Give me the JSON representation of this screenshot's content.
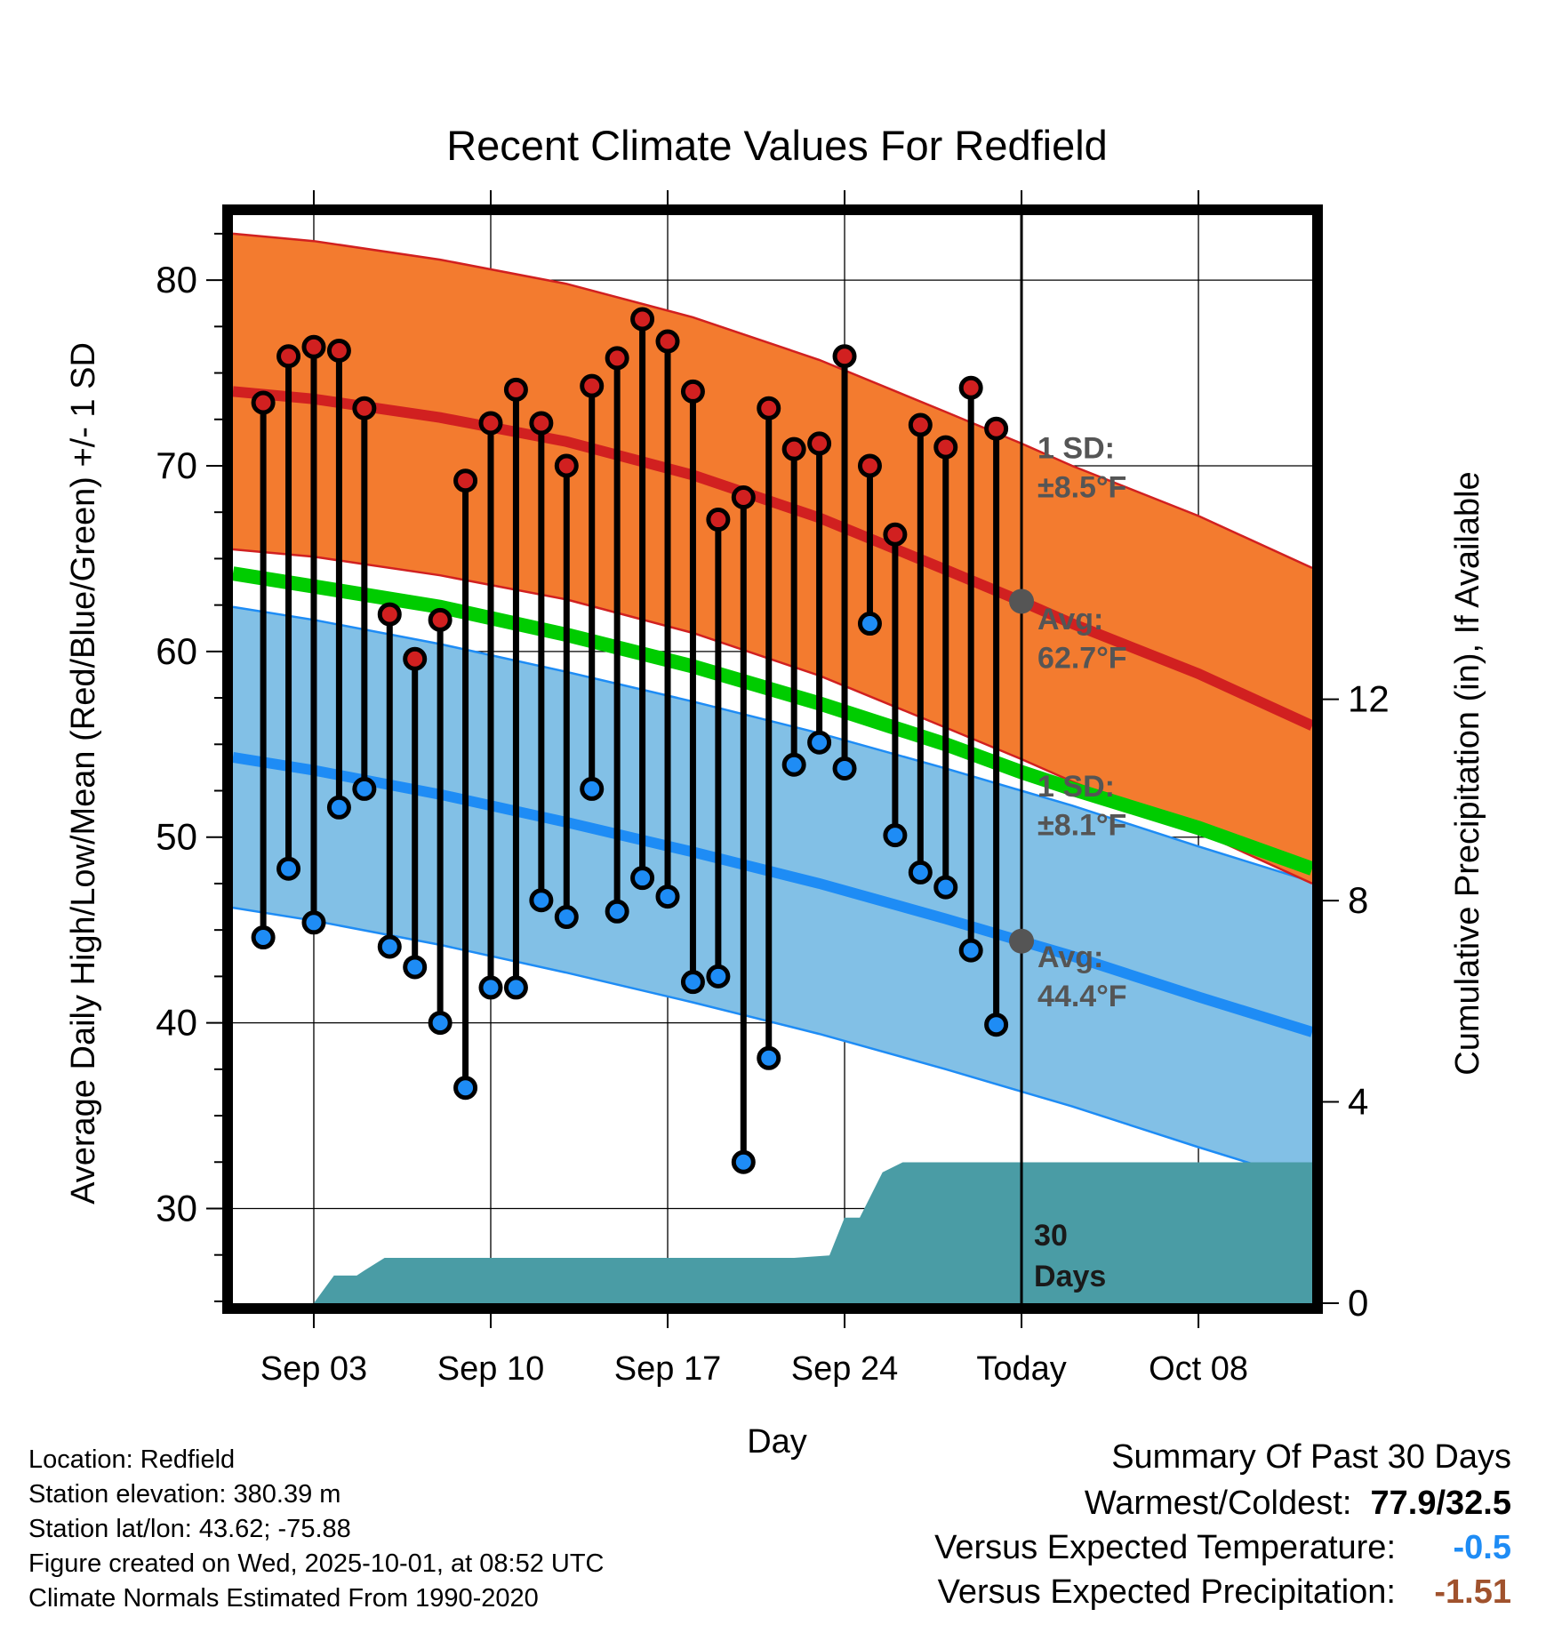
{
  "chart_data": {
    "type": "line",
    "title": "Recent Climate Values For Redfield",
    "xlabel": "Day",
    "ylabel": "Average Daily High/Low/Mean (Red/Blue/Green) +/- 1 SD",
    "y2label": "Cumulative Precipitation (in), If Available",
    "xlim": [
      -3.2,
      39.5
    ],
    "ylim": [
      24.9,
      83.5
    ],
    "y2lim": [
      0,
      21.62
    ],
    "x_ticks": [
      {
        "day": 0,
        "label": "Sep 03"
      },
      {
        "day": 7,
        "label": "Sep 10"
      },
      {
        "day": 14,
        "label": "Sep 17"
      },
      {
        "day": 21,
        "label": "Sep 24"
      },
      {
        "day": 28,
        "label": "Today"
      },
      {
        "day": 35,
        "label": "Oct 08"
      }
    ],
    "y_ticks": [
      30,
      40,
      50,
      60,
      70,
      80
    ],
    "y2_ticks": [
      0,
      4,
      8,
      12
    ],
    "today_day": 28,
    "highs": [
      73.4,
      75.9,
      76.4,
      76.2,
      73.1,
      62.0,
      59.6,
      61.7,
      69.2,
      72.3,
      74.1,
      72.3,
      70.0,
      74.3,
      75.8,
      77.9,
      76.7,
      74.0,
      67.1,
      68.3,
      73.1,
      70.9,
      71.2,
      75.9,
      70.0,
      66.3,
      72.2,
      71.0,
      74.2,
      72.0
    ],
    "lows": [
      44.6,
      48.3,
      45.4,
      51.6,
      52.6,
      44.1,
      43.0,
      40.0,
      36.5,
      41.9,
      41.9,
      46.6,
      45.7,
      52.6,
      46.0,
      47.8,
      46.8,
      42.2,
      42.5,
      32.5,
      38.1,
      53.9,
      55.1,
      53.7,
      61.5,
      50.1,
      48.1,
      47.3,
      43.9,
      39.9
    ],
    "normal_high": {
      "x": [
        -3.2,
        0,
        5,
        10,
        15,
        20,
        25,
        28,
        30,
        35,
        39.5
      ],
      "y": [
        74.0,
        73.6,
        72.6,
        71.3,
        69.5,
        67.2,
        64.4,
        62.7,
        61.5,
        58.8,
        56.0
      ]
    },
    "normal_low": {
      "x": [
        -3.2,
        0,
        5,
        10,
        15,
        20,
        25,
        28,
        30,
        35,
        39.5
      ],
      "y": [
        54.3,
        53.6,
        52.3,
        50.8,
        49.2,
        47.5,
        45.6,
        44.4,
        43.6,
        41.4,
        39.5
      ]
    },
    "normal_mean": {
      "x": [
        -3.2,
        0,
        5,
        10,
        15,
        20,
        25,
        28,
        30,
        35,
        39.5
      ],
      "y": [
        64.2,
        63.5,
        62.4,
        60.9,
        59.2,
        57.2,
        55.0,
        53.5,
        52.6,
        50.5,
        48.3
      ]
    },
    "high_sd": 8.5,
    "low_sd": 8.1,
    "precip": {
      "x": [
        -3.2,
        0,
        0.8,
        1.7,
        2.0,
        2.8,
        11,
        14,
        19,
        20.4,
        21,
        21.6,
        22.5,
        23.3,
        24,
        39.5
      ],
      "y": [
        0,
        0,
        0.55,
        0.55,
        0.65,
        0.9,
        0.9,
        0.9,
        0.9,
        0.95,
        1.7,
        1.7,
        2.6,
        2.8,
        2.8,
        2.8
      ]
    },
    "annotations": {
      "high_sd_label": "1 SD:",
      "high_sd_value": "±8.5°F",
      "high_avg_label": "Avg:",
      "high_avg_value": "62.7°F",
      "low_sd_label": "1 SD:",
      "low_sd_value": "±8.1°F",
      "low_avg_label": "Avg:",
      "low_avg_value": "44.4°F",
      "days_line1": "30",
      "days_line2": "Days"
    },
    "colors": {
      "high_band": "#f37b2f",
      "high_line": "#d12020",
      "low_band": "#82c0e6",
      "low_line": "#1e8cf5",
      "mean_line": "#00cc00",
      "precip": "#4a9ca5",
      "annotation": "#555555"
    }
  },
  "info": {
    "location": "Location: Redfield",
    "elevation": "Station elevation: 380.39 m",
    "latlon": "Station lat/lon: 43.62; -75.88",
    "created": "Figure created on Wed, 2025-10-01, at 08:52 UTC",
    "normals": "Climate Normals Estimated From 1990-2020"
  },
  "summary": {
    "title": "Summary Of Past 30 Days",
    "warm_cold_label": "Warmest/Coldest:",
    "warm_cold_value": "77.9/32.5",
    "temp_label": "Versus Expected Temperature:",
    "temp_value": "-0.5",
    "temp_color": "#1e8cf5",
    "precip_label": "Versus Expected Precipitation:",
    "precip_value": "-1.51",
    "precip_color": "#a0522d"
  }
}
